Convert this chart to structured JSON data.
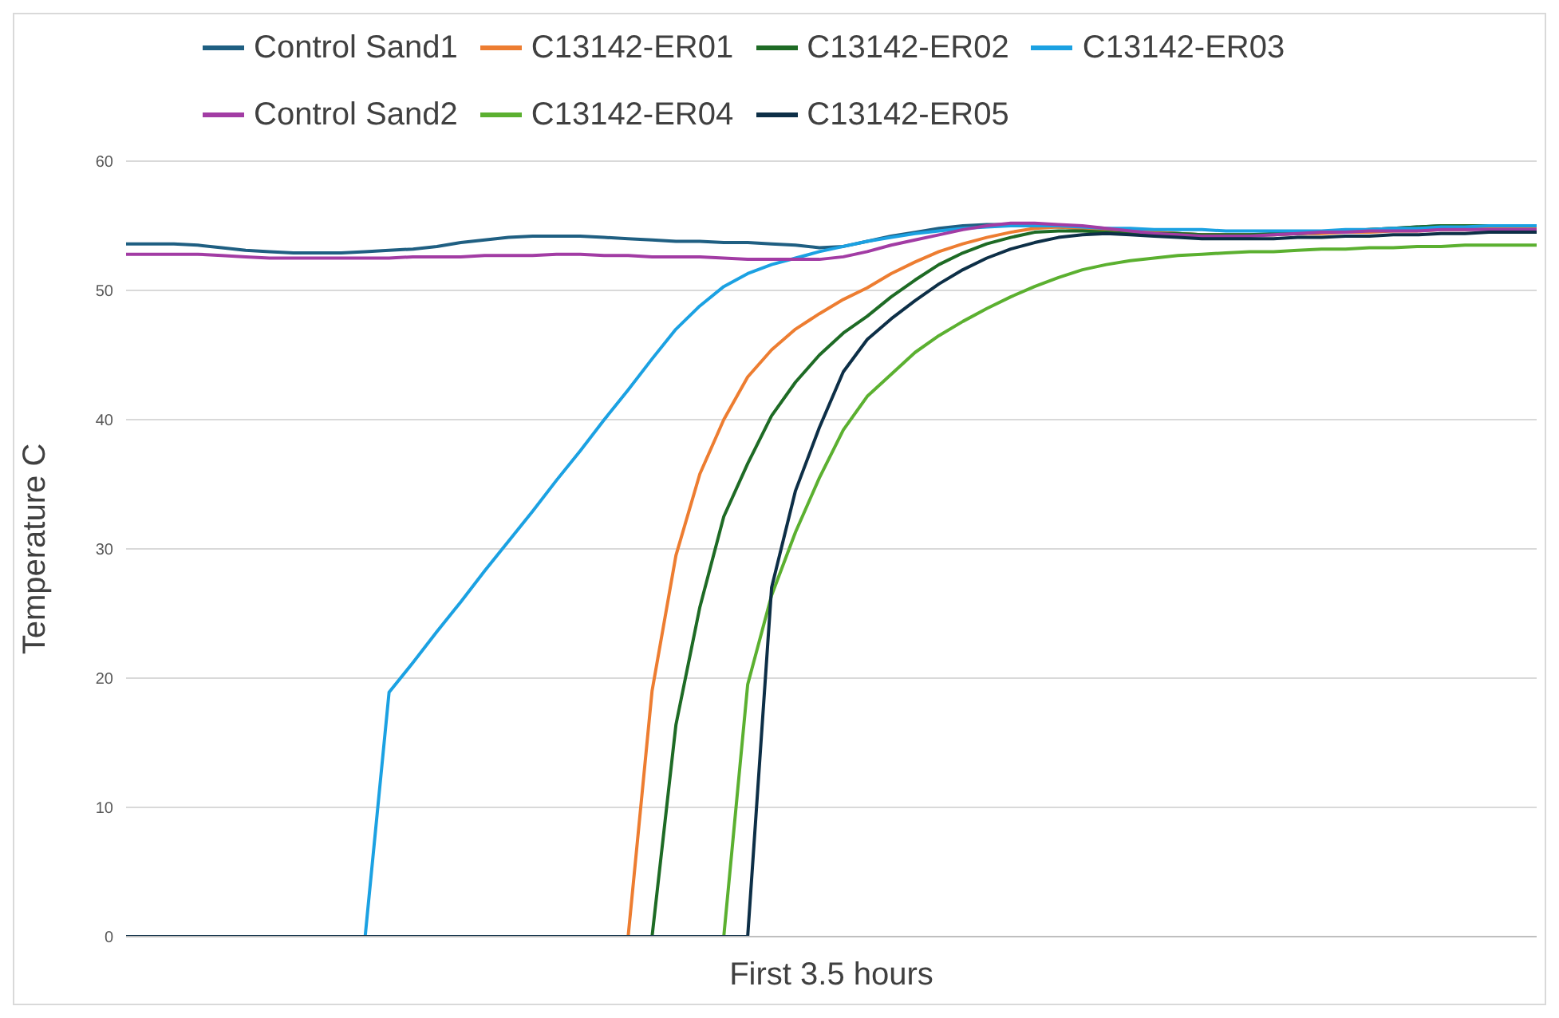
{
  "chart_data": {
    "type": "line",
    "xlabel": "First 3.5 hours",
    "ylabel": "Temperature C",
    "categories": [
      null,
      null,
      null,
      null,
      null,
      null,
      null,
      null,
      null,
      null,
      null,
      null,
      null,
      null,
      null,
      null,
      null,
      null,
      null,
      null,
      null,
      null,
      null,
      null,
      null,
      null,
      null,
      null,
      null,
      null,
      null,
      null,
      null,
      null,
      null,
      null,
      null,
      null,
      null,
      null,
      null,
      null,
      null,
      null,
      null,
      null,
      null,
      null,
      null,
      null,
      null,
      null,
      null,
      null,
      null,
      null,
      null,
      null,
      null,
      null
    ],
    "series": [
      {
        "name": "Control Sand1",
        "color": "#1f5f82",
        "values": [
          53.6,
          53.6,
          53.6,
          53.5,
          53.3,
          53.1,
          53.0,
          52.9,
          52.9,
          52.9,
          53.0,
          53.1,
          53.2,
          53.4,
          53.7,
          53.9,
          54.1,
          54.2,
          54.2,
          54.2,
          54.1,
          54.0,
          53.9,
          53.8,
          53.8,
          53.7,
          53.7,
          53.6,
          53.5,
          53.3,
          53.4,
          53.8,
          54.2,
          54.5,
          54.8,
          55.0,
          55.1,
          55.1,
          55.0,
          54.9,
          54.8,
          54.7,
          54.6,
          54.5,
          54.4,
          54.3,
          54.3,
          54.3,
          54.3,
          54.4,
          54.5,
          54.6,
          54.7,
          54.8,
          54.9,
          55.0,
          55.0,
          55.0,
          55.0,
          55.0
        ]
      },
      {
        "name": "C13142-ER01",
        "color": "#ed7d31",
        "values": [
          null,
          null,
          null,
          null,
          null,
          null,
          null,
          null,
          null,
          null,
          null,
          null,
          null,
          null,
          null,
          null,
          null,
          null,
          null,
          null,
          null,
          0,
          19,
          29.5,
          35.8,
          40.0,
          43.3,
          45.4,
          47.0,
          48.2,
          49.3,
          50.2,
          51.3,
          52.2,
          53.0,
          53.6,
          54.1,
          54.5,
          54.8,
          54.9,
          54.8,
          54.7,
          54.6,
          54.5,
          54.4,
          54.3,
          54.3,
          54.3,
          54.3,
          54.4,
          54.4,
          54.5,
          54.5,
          54.6,
          54.6,
          54.7,
          54.7,
          54.8,
          54.8,
          54.8
        ]
      },
      {
        "name": "C13142-ER02",
        "color": "#1e6b25",
        "values": [
          null,
          null,
          null,
          null,
          null,
          null,
          null,
          null,
          null,
          null,
          null,
          null,
          null,
          null,
          null,
          null,
          null,
          null,
          null,
          null,
          null,
          null,
          0,
          16.4,
          25.5,
          32.5,
          36.6,
          40.3,
          42.9,
          45.0,
          46.7,
          48.0,
          49.5,
          50.8,
          52.0,
          52.9,
          53.6,
          54.1,
          54.5,
          54.6,
          54.6,
          54.5,
          54.4,
          54.4,
          54.4,
          54.3,
          54.3,
          54.3,
          54.4,
          54.4,
          54.5,
          54.6,
          54.7,
          54.8,
          54.9,
          55.0,
          55.0,
          55.0,
          55.0,
          55.0
        ]
      },
      {
        "name": "C13142-ER03",
        "color": "#1ba1e2",
        "values": [
          null,
          null,
          null,
          null,
          null,
          null,
          null,
          null,
          null,
          null,
          0,
          18.9,
          21.2,
          23.6,
          25.9,
          28.3,
          30.6,
          32.9,
          35.3,
          37.6,
          40.0,
          42.3,
          44.7,
          47.0,
          48.8,
          50.3,
          51.3,
          52.0,
          52.5,
          53.0,
          53.4,
          53.8,
          54.1,
          54.4,
          54.6,
          54.8,
          54.9,
          55.0,
          55.0,
          55.0,
          54.9,
          54.8,
          54.8,
          54.7,
          54.7,
          54.7,
          54.6,
          54.6,
          54.6,
          54.6,
          54.6,
          54.7,
          54.7,
          54.8,
          54.8,
          54.9,
          54.9,
          55.0,
          55.0,
          55.0
        ]
      },
      {
        "name": "Control Sand2",
        "color": "#a23ca4",
        "values": [
          52.8,
          52.8,
          52.8,
          52.8,
          52.7,
          52.6,
          52.5,
          52.5,
          52.5,
          52.5,
          52.5,
          52.5,
          52.6,
          52.6,
          52.6,
          52.7,
          52.7,
          52.7,
          52.8,
          52.8,
          52.7,
          52.7,
          52.6,
          52.6,
          52.6,
          52.5,
          52.4,
          52.4,
          52.4,
          52.4,
          52.6,
          53.0,
          53.5,
          53.9,
          54.3,
          54.7,
          55.0,
          55.2,
          55.2,
          55.1,
          55.0,
          54.8,
          54.6,
          54.4,
          54.3,
          54.2,
          54.2,
          54.2,
          54.3,
          54.4,
          54.5,
          54.5,
          54.6,
          54.6,
          54.6,
          54.7,
          54.7,
          54.7,
          54.7,
          54.7
        ]
      },
      {
        "name": "C13142-ER04",
        "color": "#5bb030",
        "values": [
          null,
          null,
          null,
          null,
          null,
          null,
          null,
          null,
          null,
          null,
          null,
          null,
          null,
          null,
          null,
          null,
          null,
          null,
          null,
          null,
          null,
          null,
          null,
          null,
          null,
          0,
          19.5,
          26.4,
          31.3,
          35.5,
          39.2,
          41.8,
          43.5,
          45.2,
          46.5,
          47.6,
          48.6,
          49.5,
          50.3,
          51.0,
          51.6,
          52.0,
          52.3,
          52.5,
          52.7,
          52.8,
          52.9,
          53.0,
          53.0,
          53.1,
          53.2,
          53.2,
          53.3,
          53.3,
          53.4,
          53.4,
          53.5,
          53.5,
          53.5,
          53.5
        ]
      },
      {
        "name": "C13142-ER05",
        "color": "#0d2f47",
        "values": [
          0,
          0,
          0,
          0,
          0,
          0,
          0,
          0,
          0,
          0,
          0,
          0,
          0,
          0,
          0,
          0,
          0,
          0,
          0,
          0,
          0,
          0,
          0,
          0,
          0,
          0,
          0,
          27.0,
          34.5,
          39.4,
          43.7,
          46.2,
          47.8,
          49.2,
          50.5,
          51.6,
          52.5,
          53.2,
          53.7,
          54.1,
          54.3,
          54.4,
          54.3,
          54.2,
          54.1,
          54.0,
          54.0,
          54.0,
          54.0,
          54.1,
          54.1,
          54.2,
          54.2,
          54.3,
          54.3,
          54.4,
          54.4,
          54.5,
          54.5,
          54.5
        ]
      }
    ],
    "ylim": [
      0,
      60
    ],
    "yticks": [
      0,
      10,
      20,
      30,
      40,
      50,
      60
    ],
    "grid": "y",
    "legend": "top",
    "marker": "none",
    "line_style": "solid"
  }
}
